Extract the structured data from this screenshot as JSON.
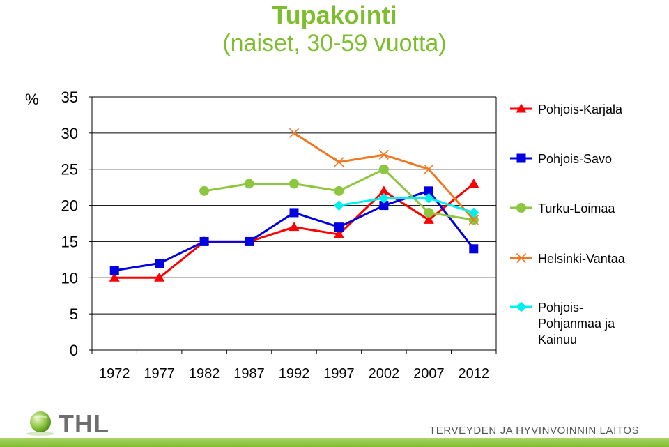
{
  "title": "Tupakointi",
  "subtitle": "(naiset, 30-59 vuotta)",
  "chart_data": {
    "type": "line",
    "ylabel": "%",
    "ylim": [
      0,
      35
    ],
    "yticks": [
      0,
      5,
      10,
      15,
      20,
      25,
      30,
      35
    ],
    "x": [
      "1972",
      "1977",
      "1982",
      "1987",
      "1992",
      "1997",
      "2002",
      "2007",
      "2012"
    ],
    "grid": true,
    "legend_position": "right",
    "series": [
      {
        "name": "Pohjois-Karjala",
        "color": "#ff0000",
        "marker": "triangle",
        "values": [
          10,
          10,
          15,
          15,
          17,
          16,
          22,
          18,
          23
        ]
      },
      {
        "name": "Pohjois-Savo",
        "color": "#0000e0",
        "marker": "square",
        "values": [
          11,
          12,
          15,
          15,
          19,
          17,
          20,
          22,
          14
        ]
      },
      {
        "name": "Turku-Loimaa",
        "color": "#8dc63f",
        "marker": "circle",
        "values": [
          null,
          null,
          22,
          23,
          23,
          22,
          25,
          19,
          18
        ]
      },
      {
        "name": "Helsinki-Vantaa",
        "color": "#f07820",
        "marker": "x",
        "values": [
          null,
          null,
          null,
          null,
          30,
          26,
          27,
          25,
          18
        ]
      },
      {
        "name": "Pohjois-Pohjanmaa ja Kainuu",
        "legend_lines": [
          "Pohjois-",
          "Pohjanmaa ja",
          "Kainuu"
        ],
        "color": "#00f0f0",
        "marker": "diamond",
        "values": [
          null,
          null,
          null,
          null,
          null,
          20,
          21,
          21,
          19
        ]
      }
    ]
  },
  "footer": {
    "logo_text": "THL",
    "institute": "TERVEYDEN JA HYVINVOINNIN LAITOS"
  }
}
